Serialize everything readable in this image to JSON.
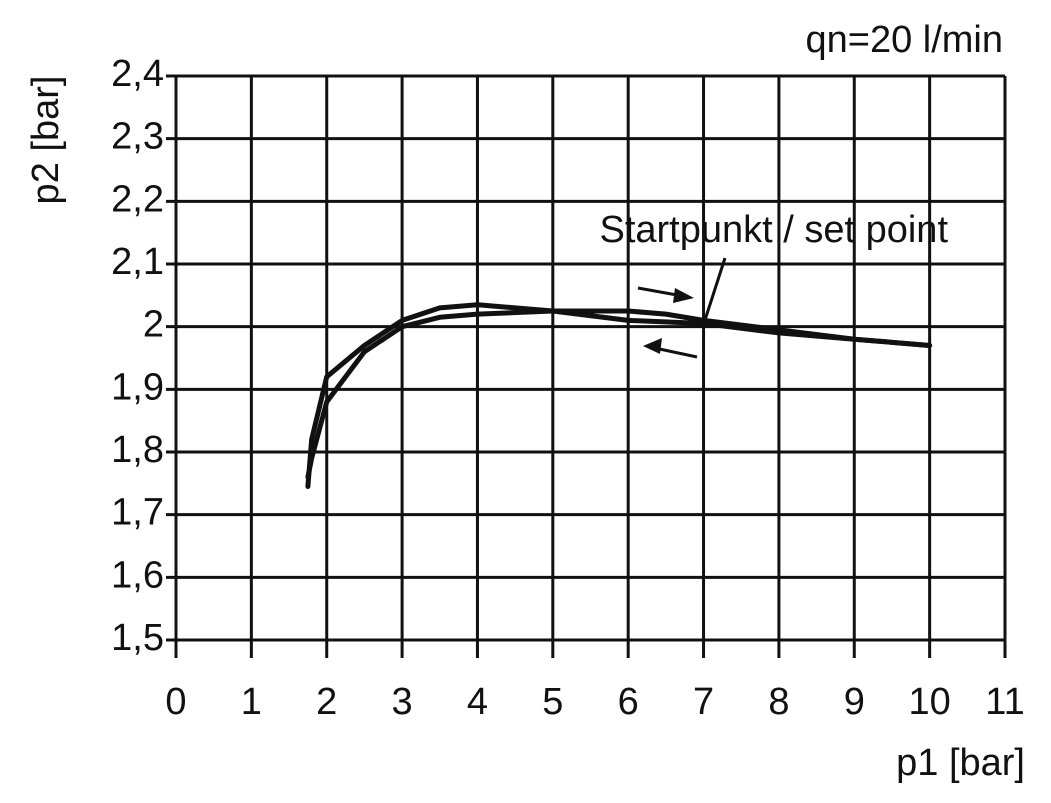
{
  "chart_data": {
    "type": "line",
    "annotation": "qn=20 l/min",
    "note": "Startpunkt / set point",
    "xlabel": "p1 [bar]",
    "ylabel": "p2 [bar]",
    "xlim": [
      0,
      11
    ],
    "xticks": [
      0,
      1,
      2,
      3,
      4,
      5,
      6,
      7,
      8,
      9,
      10,
      11
    ],
    "ylim": [
      1.5,
      2.4
    ],
    "yticks": [
      {
        "value": 1.5,
        "label": "1,5"
      },
      {
        "value": 1.6,
        "label": "1,6"
      },
      {
        "value": 1.7,
        "label": "1,7"
      },
      {
        "value": 1.8,
        "label": "1,8"
      },
      {
        "value": 1.9,
        "label": "1,9"
      },
      2,
      {
        "value": 2.1,
        "label": "2,1"
      },
      {
        "value": 2.2,
        "label": "2,2"
      },
      {
        "value": 2.3,
        "label": "2,3"
      },
      {
        "value": 2.4,
        "label": "2,4"
      }
    ],
    "grid": true,
    "series": [
      {
        "color": "#111111",
        "x": [
          1.75,
          1.8,
          2.0,
          2.5,
          3.0,
          3.5,
          4.0,
          4.5,
          5.0,
          6.0,
          6.5,
          7.0,
          8.0,
          9.0,
          10.0
        ],
        "values": [
          1.745,
          1.82,
          1.92,
          1.97,
          2.01,
          2.03,
          2.035,
          2.03,
          2.025,
          2.025,
          2.02,
          2.01,
          1.995,
          1.98,
          1.97
        ]
      },
      {
        "color": "#111111",
        "x": [
          10.0,
          9.0,
          8.0,
          7.0,
          6.0,
          5.0,
          4.0,
          3.5,
          3.0,
          2.5,
          2.0,
          1.8,
          1.75
        ],
        "values": [
          1.97,
          1.98,
          1.99,
          2.005,
          2.01,
          2.025,
          2.02,
          2.015,
          2.0,
          1.96,
          1.88,
          1.79,
          1.76
        ]
      }
    ]
  }
}
